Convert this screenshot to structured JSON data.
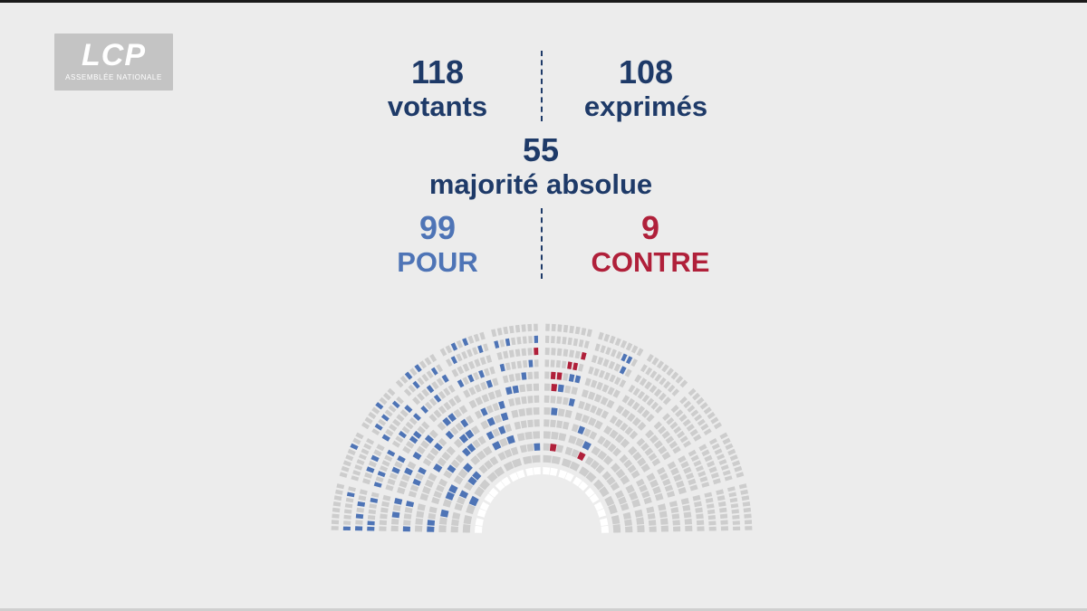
{
  "logo": {
    "main": "LCP",
    "sub": "ASSEMBLÉE NATIONALE"
  },
  "votants": {
    "value": "118",
    "label": "votants"
  },
  "exprimes": {
    "value": "108",
    "label": "exprimés"
  },
  "majorite": {
    "value": "55",
    "label": "majorité absolue"
  },
  "pour": {
    "value": "99",
    "label": "POUR"
  },
  "contre": {
    "value": "9",
    "label": "CONTRE"
  },
  "colors": {
    "navy": "#1e3a68",
    "pour": "#4e74b6",
    "contre": "#b0203a",
    "seat_empty": "#cdcdcd",
    "seat_inner": "#ffffff",
    "background": "#ececec"
  },
  "hemicycle": {
    "pour_seats": 99,
    "contre_seats": 9
  }
}
